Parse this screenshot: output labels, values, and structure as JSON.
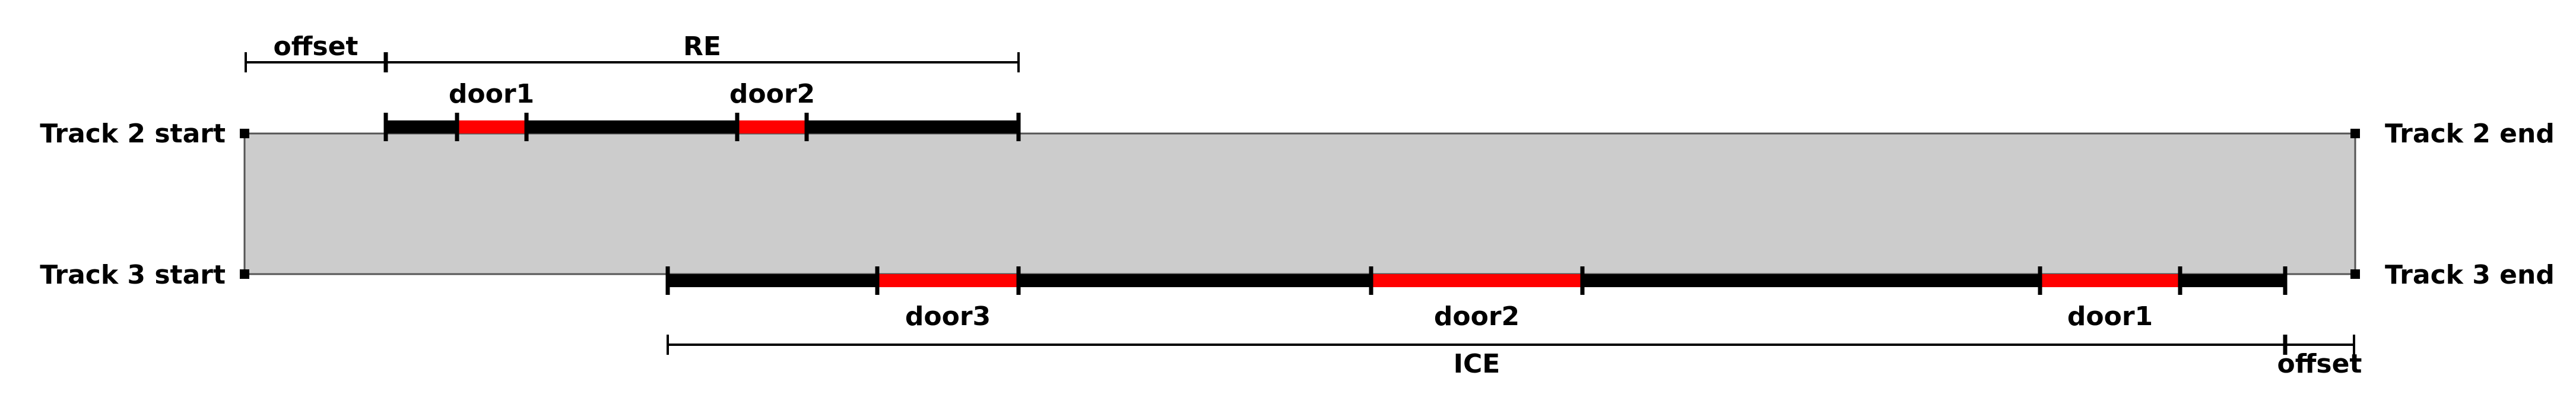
{
  "colors": {
    "platform_fill": "#cccccc",
    "platform_stroke": "#555555",
    "train": "#000000",
    "door": "#ff0000",
    "dimension": "#000000"
  },
  "top": {
    "track_start": "Track 2 start",
    "track_end": "Track 2 end",
    "offset_label": "offset",
    "train_label": "RE",
    "doors": [
      "door1",
      "door2"
    ]
  },
  "bottom": {
    "track_start": "Track 3 start",
    "track_end": "Track 3 end",
    "offset_label": "offset",
    "train_label": "ICE",
    "doors": [
      "door3",
      "door2",
      "door1"
    ]
  }
}
